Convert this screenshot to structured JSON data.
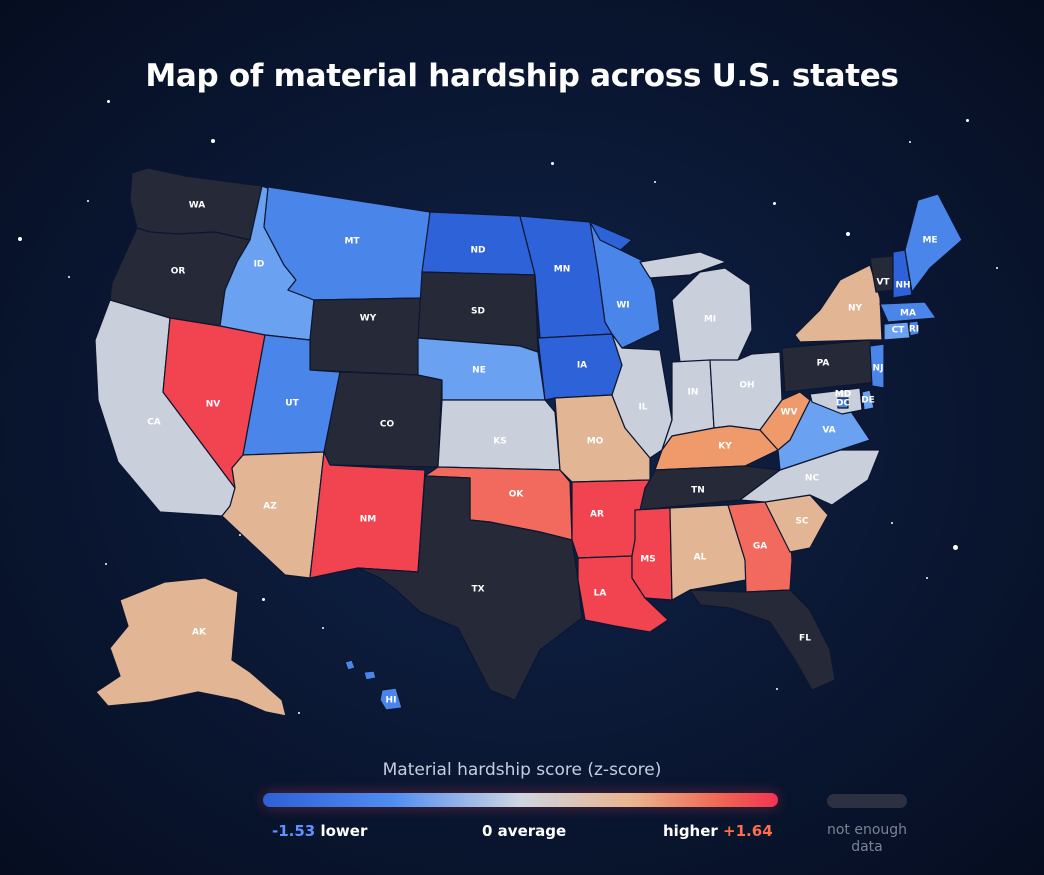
{
  "title": "Map of material hardship across U.S. states",
  "legend": {
    "title": "Material hardship score (z-score)",
    "low_value": "-1.53",
    "low_word": "lower",
    "mid_value": "0",
    "mid_word": "average",
    "high_word": "higher",
    "high_value": "+1.64",
    "no_data": "not enough data"
  },
  "colors": {
    "no_data": "#262a38",
    "strong_blue": "#2d62d8",
    "blue": "#4a86ea",
    "light_blue": "#6aa1f0",
    "neutral": "#c9cfdb",
    "tan": "#e2b594",
    "orange": "#ee9a6a",
    "red": "#f14450",
    "coral": "#f26a5e"
  },
  "states": [
    {
      "abbr": "WA",
      "category": "no_data"
    },
    {
      "abbr": "OR",
      "category": "no_data"
    },
    {
      "abbr": "CA",
      "category": "neutral"
    },
    {
      "abbr": "ID",
      "category": "light_blue"
    },
    {
      "abbr": "NV",
      "category": "red"
    },
    {
      "abbr": "MT",
      "category": "blue"
    },
    {
      "abbr": "WY",
      "category": "no_data"
    },
    {
      "abbr": "UT",
      "category": "blue"
    },
    {
      "abbr": "AZ",
      "category": "tan"
    },
    {
      "abbr": "CO",
      "category": "no_data"
    },
    {
      "abbr": "NM",
      "category": "red"
    },
    {
      "abbr": "ND",
      "category": "strong_blue"
    },
    {
      "abbr": "SD",
      "category": "no_data"
    },
    {
      "abbr": "NE",
      "category": "light_blue"
    },
    {
      "abbr": "KS",
      "category": "neutral"
    },
    {
      "abbr": "OK",
      "category": "coral"
    },
    {
      "abbr": "TX",
      "category": "no_data"
    },
    {
      "abbr": "MN",
      "category": "strong_blue"
    },
    {
      "abbr": "IA",
      "category": "strong_blue"
    },
    {
      "abbr": "MO",
      "category": "tan"
    },
    {
      "abbr": "AR",
      "category": "red"
    },
    {
      "abbr": "LA",
      "category": "red"
    },
    {
      "abbr": "WI",
      "category": "blue"
    },
    {
      "abbr": "IL",
      "category": "neutral"
    },
    {
      "abbr": "MI",
      "category": "neutral"
    },
    {
      "abbr": "IN",
      "category": "neutral"
    },
    {
      "abbr": "OH",
      "category": "neutral"
    },
    {
      "abbr": "KY",
      "category": "orange"
    },
    {
      "abbr": "TN",
      "category": "no_data"
    },
    {
      "abbr": "MS",
      "category": "red"
    },
    {
      "abbr": "AL",
      "category": "tan"
    },
    {
      "abbr": "GA",
      "category": "coral"
    },
    {
      "abbr": "FL",
      "category": "no_data"
    },
    {
      "abbr": "SC",
      "category": "tan"
    },
    {
      "abbr": "NC",
      "category": "neutral"
    },
    {
      "abbr": "VA",
      "category": "light_blue"
    },
    {
      "abbr": "WV",
      "category": "orange"
    },
    {
      "abbr": "PA",
      "category": "no_data"
    },
    {
      "abbr": "NY",
      "category": "tan"
    },
    {
      "abbr": "VT",
      "category": "no_data"
    },
    {
      "abbr": "NH",
      "category": "strong_blue"
    },
    {
      "abbr": "ME",
      "category": "blue"
    },
    {
      "abbr": "MA",
      "category": "blue"
    },
    {
      "abbr": "CT",
      "category": "light_blue"
    },
    {
      "abbr": "RI",
      "category": "blue"
    },
    {
      "abbr": "NJ",
      "category": "blue"
    },
    {
      "abbr": "DE",
      "category": "light_blue"
    },
    {
      "abbr": "MD",
      "category": "neutral"
    },
    {
      "abbr": "DC",
      "category": "blue"
    },
    {
      "abbr": "AK",
      "category": "tan"
    },
    {
      "abbr": "HI",
      "category": "blue"
    }
  ]
}
